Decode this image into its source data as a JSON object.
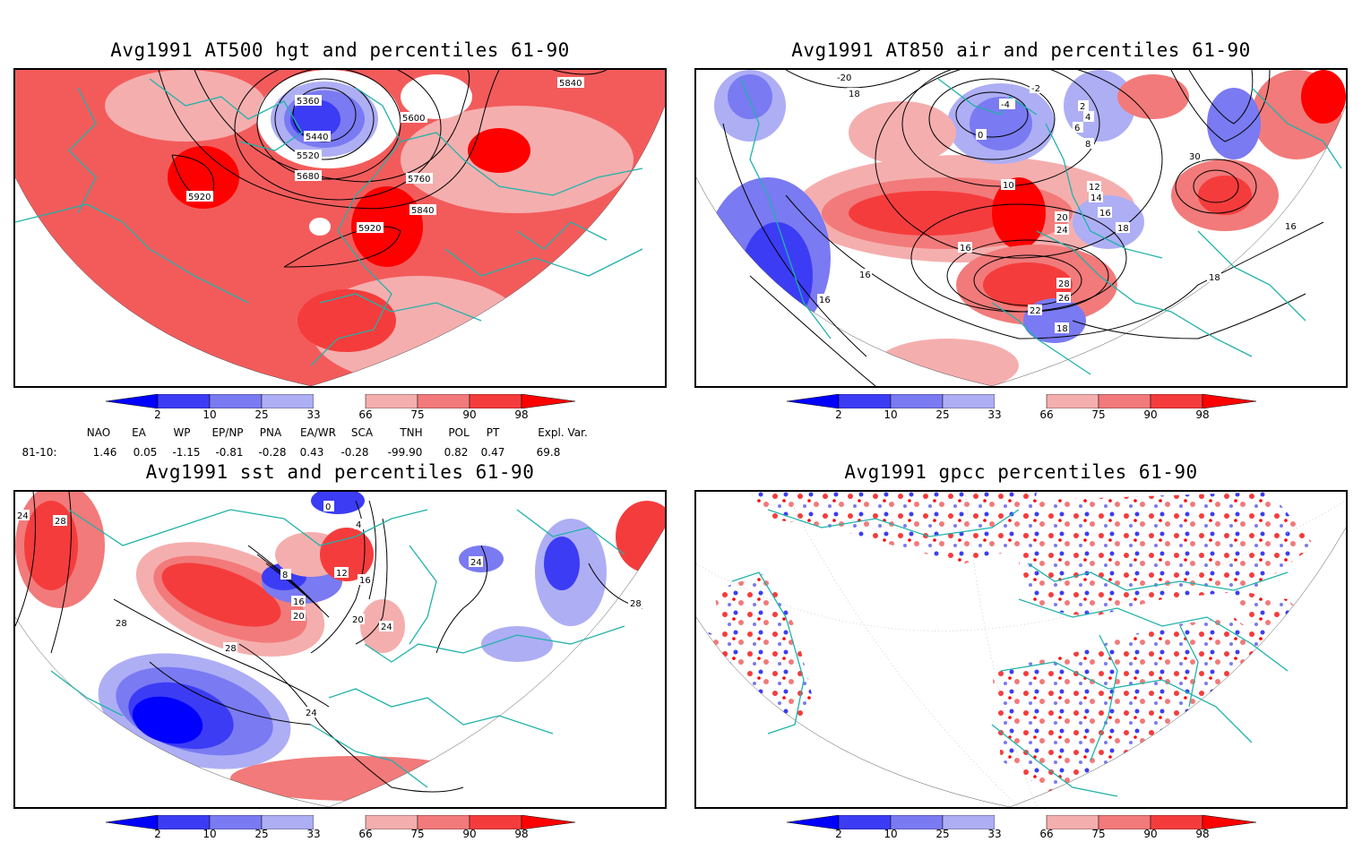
{
  "panels": {
    "p1": {
      "title": "Avg1991 AT500 hgt and percentiles 61-90",
      "contour_labels": [
        "5360",
        "5440",
        "5520",
        "5600",
        "5680",
        "5760",
        "5840",
        "5920",
        "5920",
        "5840"
      ]
    },
    "p2": {
      "title": "Avg1991 AT850 air and percentiles 61-90",
      "contour_labels": [
        "-20",
        "18",
        "-2",
        "-4",
        "0",
        "2",
        "4",
        "6",
        "8",
        "10",
        "12",
        "14",
        "16",
        "18",
        "20",
        "22",
        "24",
        "26",
        "28",
        "30",
        "16",
        "16",
        "16",
        "18",
        "18",
        "16"
      ]
    },
    "p3": {
      "title": "Avg1991 sst and percentiles 61-90",
      "contour_labels": [
        "24",
        "28",
        "28",
        "28",
        "24",
        "20",
        "16",
        "12",
        "8",
        "4",
        "0",
        "16",
        "20",
        "24",
        "24",
        "28"
      ]
    },
    "p4": {
      "title": "Avg1991 gpcc percentiles 61-90"
    }
  },
  "colorbar": {
    "labels": [
      "2",
      "10",
      "25",
      "33",
      "66",
      "75",
      "90",
      "98"
    ],
    "colors": {
      "deep_blue": "#0000ff",
      "blue": "#3c3cf5",
      "mid_blue": "#7a7af2",
      "light_blue": "#aeaef5",
      "white": "#ffffff",
      "light_red": "#f5aeae",
      "mid_red": "#f27a7a",
      "red": "#f53c3c",
      "deep_red": "#ff0000"
    }
  },
  "indices": {
    "headers": [
      "NAO",
      "EA",
      "WP",
      "EP/NP",
      "PNA",
      "EA/WR",
      "SCA",
      "TNH",
      "POL",
      "PT",
      "Expl. Var."
    ],
    "row_label": "81-10:",
    "values": [
      "1.46",
      "0.05",
      "-1.15",
      "-0.81",
      "-0.28",
      "0.43",
      "-0.28",
      "-99.90",
      "0.82",
      "0.47",
      "69.8"
    ]
  },
  "colors": {
    "coast": "#20b2aa",
    "contour": "#000000",
    "frame": "#000000"
  }
}
